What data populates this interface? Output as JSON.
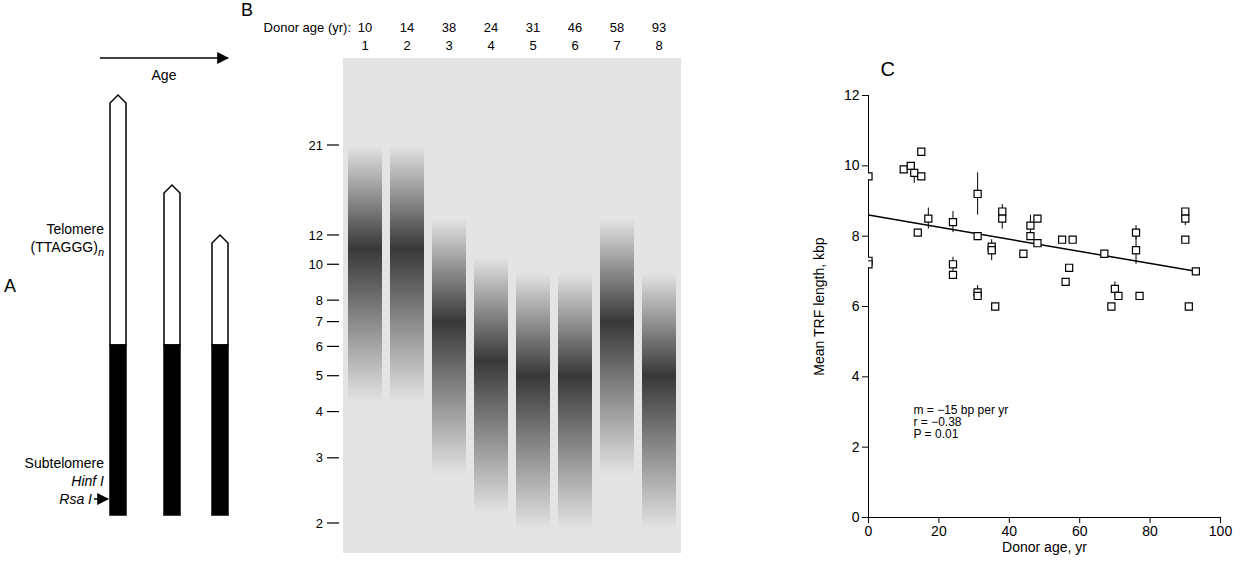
{
  "diagram": {
    "letter": "A",
    "arrow_label": "Age",
    "telomere": "Telomere",
    "repeat": "(TTAGGG)",
    "repeat_count": "n",
    "subtelomere": "Subtelomere",
    "site_1": "Hinf I",
    "site_2": "Rsa I"
  },
  "gel": {
    "letter": "B",
    "header": "Donor age (yr):",
    "lanes": [
      {
        "number": 1,
        "donor_age": 10,
        "peak_kbp": 11
      },
      {
        "number": 2,
        "donor_age": 14,
        "peak_kbp": 11
      },
      {
        "number": 3,
        "donor_age": 38,
        "peak_kbp": 7
      },
      {
        "number": 4,
        "donor_age": 24,
        "peak_kbp": 5.5
      },
      {
        "number": 5,
        "donor_age": 31,
        "peak_kbp": 5
      },
      {
        "number": 6,
        "donor_age": 46,
        "peak_kbp": 5
      },
      {
        "number": 7,
        "donor_age": 58,
        "peak_kbp": 7
      },
      {
        "number": 8,
        "donor_age": 93,
        "peak_kbp": 5
      }
    ],
    "size_markers_kbp": [
      21,
      12,
      10,
      8,
      7,
      6,
      5,
      4,
      3,
      2
    ]
  },
  "chart_data": {
    "type": "scatter",
    "letter": "C",
    "xlabel": "Donor age, yr",
    "ylabel": "Mean TRF length, kbp",
    "x": [
      0,
      0,
      0,
      10,
      12,
      13,
      15,
      15,
      14,
      17,
      24,
      24,
      24,
      31,
      31,
      31,
      31,
      35,
      35,
      36,
      38,
      38,
      44,
      46,
      46,
      48,
      48,
      55,
      56,
      57,
      58,
      67,
      69,
      70,
      71,
      76,
      76,
      77,
      90,
      90,
      90,
      91,
      93
    ],
    "values": [
      9.7,
      7.3,
      7.2,
      9.9,
      10.0,
      9.8,
      10.4,
      9.7,
      8.1,
      8.5,
      8.4,
      7.2,
      6.9,
      9.2,
      8.0,
      6.4,
      6.3,
      7.7,
      7.6,
      6.0,
      8.7,
      8.5,
      7.5,
      8.3,
      8.0,
      8.5,
      7.8,
      7.9,
      6.7,
      7.1,
      7.9,
      7.5,
      6.0,
      6.5,
      6.3,
      8.1,
      7.6,
      6.3,
      8.7,
      8.5,
      7.9,
      6.0,
      7.0
    ],
    "errors": [
      null,
      null,
      null,
      null,
      null,
      0.3,
      null,
      null,
      null,
      0.3,
      0.3,
      0.2,
      null,
      0.6,
      null,
      0.2,
      null,
      null,
      0.3,
      null,
      0.2,
      0.3,
      null,
      0.3,
      null,
      null,
      null,
      null,
      null,
      null,
      null,
      null,
      null,
      0.2,
      null,
      0.2,
      0.4,
      null,
      null,
      0.2,
      null,
      null,
      null
    ],
    "fit": {
      "x": [
        0,
        93
      ],
      "y": [
        8.6,
        7.0
      ]
    },
    "annotations": [
      "m = −15 bp per yr",
      "r = −0.38",
      "P = 0.01"
    ],
    "xlim": [
      0,
      100
    ],
    "ylim": [
      0,
      12
    ],
    "xticks": [
      0,
      20,
      40,
      60,
      80,
      100
    ],
    "yticks": [
      0,
      2,
      4,
      6,
      8,
      10,
      12
    ],
    "marker": "square",
    "color": "#000000",
    "grid": false
  }
}
